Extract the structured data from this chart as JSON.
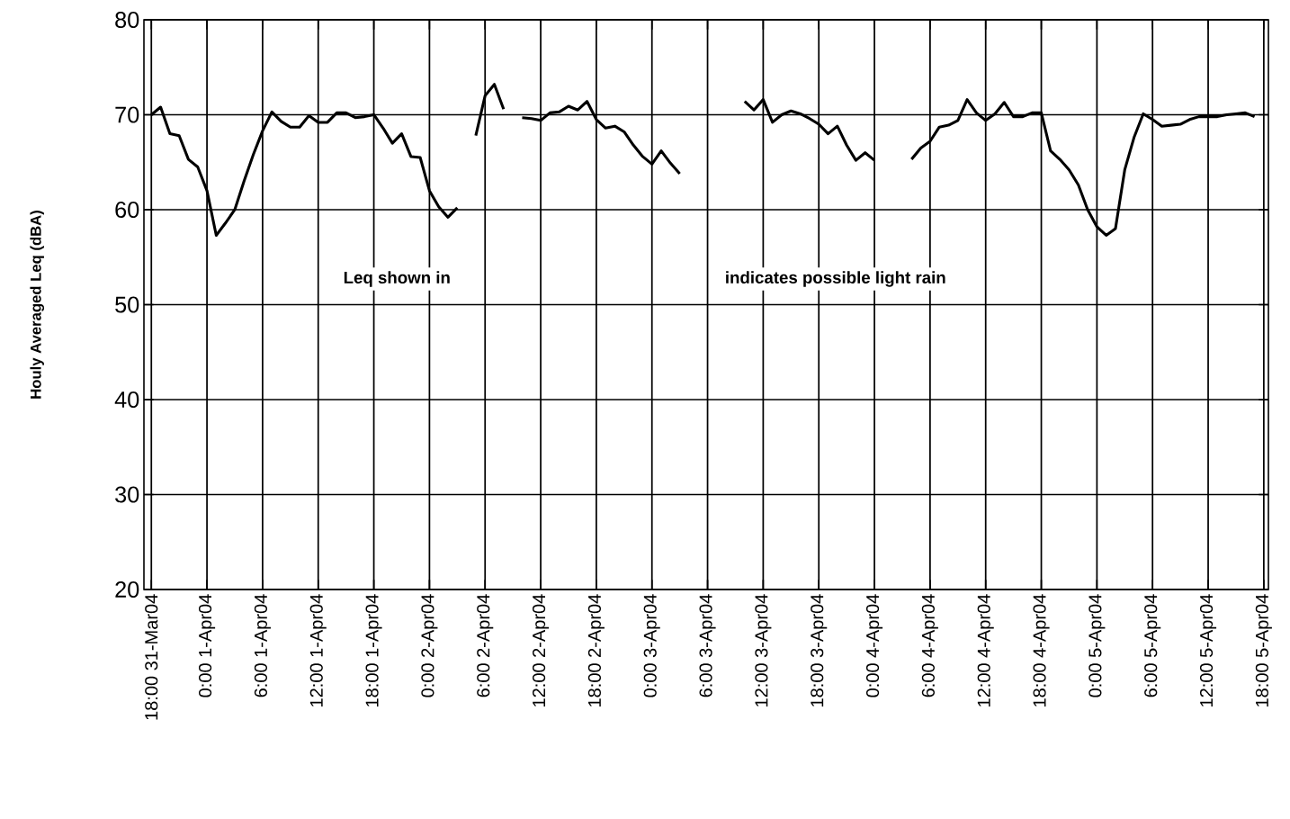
{
  "chart_data": {
    "type": "line",
    "ylabel": "Houly Averaged Leq (dBA)",
    "annotations": [
      "Leq shown in",
      "indicates possible light rain"
    ],
    "categories": [
      "18:00 31-Mar04",
      null,
      null,
      null,
      null,
      null,
      "0:00 1-Apr04",
      null,
      null,
      null,
      null,
      null,
      "6:00 1-Apr04",
      null,
      null,
      null,
      null,
      null,
      "12:00 1-Apr04",
      null,
      null,
      null,
      null,
      null,
      "18:00 1-Apr04",
      null,
      null,
      null,
      null,
      null,
      "0:00 2-Apr04",
      null,
      null,
      null,
      null,
      null,
      "6:00 2-Apr04",
      null,
      null,
      null,
      null,
      null,
      "12:00 2-Apr04",
      null,
      null,
      null,
      null,
      null,
      "18:00 2-Apr04",
      null,
      null,
      null,
      null,
      null,
      "0:00 3-Apr04",
      null,
      null,
      null,
      null,
      null,
      "6:00 3-Apr04",
      null,
      null,
      null,
      null,
      null,
      "12:00 3-Apr04",
      null,
      null,
      null,
      null,
      null,
      "18:00 3-Apr04",
      null,
      null,
      null,
      null,
      null,
      "0:00 4-Apr04",
      null,
      null,
      null,
      null,
      null,
      "6:00 4-Apr04",
      null,
      null,
      null,
      null,
      null,
      "12:00 4-Apr04",
      null,
      null,
      null,
      null,
      null,
      "18:00 4-Apr04",
      null,
      null,
      null,
      null,
      null,
      "0:00 5-Apr04",
      null,
      null,
      null,
      null,
      null,
      "6:00 5-Apr04",
      null,
      null,
      null,
      null,
      null,
      "12:00 5-Apr04",
      null,
      null,
      null,
      null,
      null,
      "18:00 5-Apr04"
    ],
    "series": [
      {
        "color": "#000000",
        "values": [
          70,
          70.8,
          68,
          67.8,
          65.3,
          64.5,
          62,
          57.3,
          58.6,
          60,
          63,
          65.8,
          68.3,
          70.3,
          69.3,
          68.7,
          68.7,
          69.9,
          69.2,
          69.2,
          70.2,
          70.2,
          69.7,
          69.8,
          70,
          68.6,
          67,
          68,
          65.6,
          65.5,
          62,
          60.3,
          59.2,
          60.2,
          null,
          67.8,
          72,
          73.2,
          70.6,
          null,
          69.7,
          69.6,
          69.4,
          70.2,
          70.3,
          70.9,
          70.5,
          71.4,
          69.5,
          68.6,
          68.8,
          68.2,
          66.8,
          65.6,
          64.8,
          66.2,
          64.9,
          63.8,
          null,
          null,
          null,
          null,
          null,
          null,
          71.4,
          70.5,
          71.6,
          69.2,
          70,
          70.4,
          70.1,
          69.6,
          69,
          68,
          68.8,
          66.8,
          65.2,
          66,
          65.2,
          null,
          null,
          null,
          65.3,
          66.5,
          67.2,
          68.7,
          68.9,
          69.4,
          71.6,
          70.2,
          69.4,
          70.1,
          71.3,
          69.8,
          69.8,
          70.2,
          70.2,
          66.2,
          65.3,
          64.2,
          62.6,
          60,
          58.2,
          57.3,
          58,
          64.2,
          67.6,
          70.1,
          69.5,
          68.8,
          68.9,
          69,
          69.5,
          69.8,
          69.8,
          69.8,
          70,
          70.1,
          70.2,
          69.8,
          null
        ]
      }
    ],
    "ylim": [
      20,
      80
    ],
    "yticks": [
      20,
      30,
      40,
      50,
      60,
      70,
      80
    ],
    "grid": true
  }
}
